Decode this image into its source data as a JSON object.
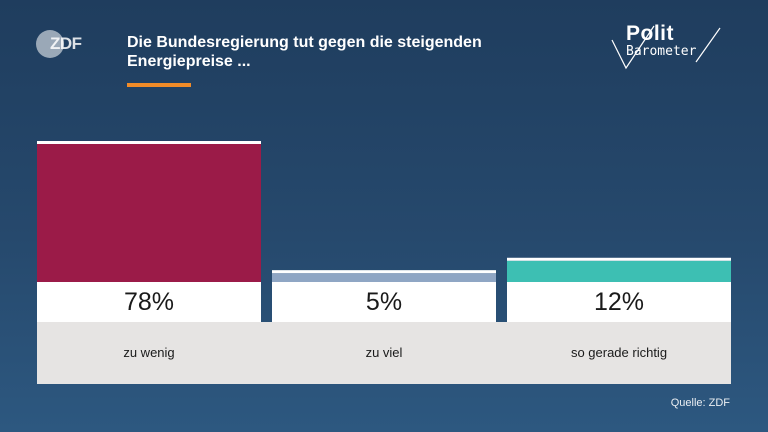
{
  "header": {
    "zdf_logo_text": "ZDF",
    "title": "Die Bundesregierung tut gegen die steigenden Energiepreise ...",
    "politbarometer_line1": "Polit",
    "politbarometer_line2": "Barometer"
  },
  "source": "Quelle: ZDF",
  "colors": {
    "accent": "#f28c28",
    "zu_wenig": "#9b1b48",
    "zu_viel": "#8fa6c4",
    "so_gerade_richtig": "#3dbfb3",
    "label_panel": "#e6e4e3"
  },
  "chart_data": {
    "type": "bar",
    "title": "Die Bundesregierung tut gegen die steigenden Energiepreise ...",
    "categories": [
      "zu wenig",
      "zu viel",
      "so gerade richtig"
    ],
    "values": [
      78,
      5,
      12
    ],
    "value_labels": [
      "78%",
      "5%",
      "12%"
    ],
    "unit": "%",
    "xlabel": "",
    "ylabel": "",
    "ylim": [
      0,
      78
    ],
    "grid": false,
    "legend": "none"
  }
}
